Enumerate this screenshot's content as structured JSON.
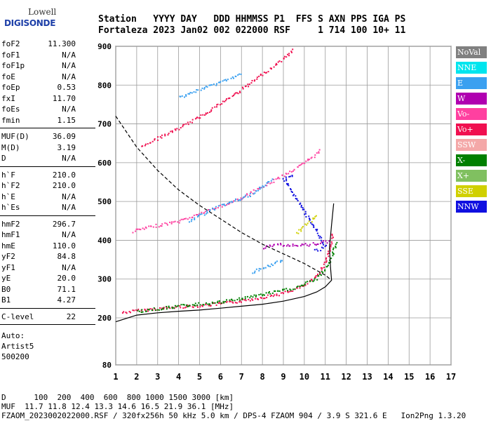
{
  "logo": {
    "line1": "Lowell",
    "line2": "DIGISONDE"
  },
  "header": {
    "line1": "Station   YYYY DAY   DDD HHMMSS P1  FFS S AXN PPS IGA PS",
    "line2": "Fortaleza 2023 Jan02 002 022000 RSF     1 714 100 10+ 11"
  },
  "params": {
    "group1": [
      {
        "label": "foF2",
        "value": "11.300"
      },
      {
        "label": "foF1",
        "value": "N/A"
      },
      {
        "label": "foF1p",
        "value": "N/A"
      },
      {
        "label": "foE",
        "value": "N/A"
      },
      {
        "label": "foEp",
        "value": "0.53"
      },
      {
        "label": "fxI",
        "value": "11.70"
      },
      {
        "label": "foEs",
        "value": "N/A"
      },
      {
        "label": "fmin",
        "value": "1.15"
      }
    ],
    "group2": [
      {
        "label": "MUF(D)",
        "value": "36.09"
      },
      {
        "label": "M(D)",
        "value": "3.19"
      },
      {
        "label": "D",
        "value": "N/A"
      }
    ],
    "group3": [
      {
        "label": "h`F",
        "value": "210.0"
      },
      {
        "label": "h`F2",
        "value": "210.0"
      },
      {
        "label": "h`E",
        "value": "N/A"
      },
      {
        "label": "h`Es",
        "value": "N/A"
      }
    ],
    "group4": [
      {
        "label": "hmF2",
        "value": "296.7"
      },
      {
        "label": "hmF1",
        "value": "N/A"
      },
      {
        "label": "hmE",
        "value": "110.0"
      },
      {
        "label": "yF2",
        "value": "84.8"
      },
      {
        "label": "yF1",
        "value": "N/A"
      },
      {
        "label": "yE",
        "value": "20.0"
      },
      {
        "label": "B0",
        "value": "71.1"
      },
      {
        "label": "B1",
        "value": "4.27"
      }
    ],
    "group5": [
      {
        "label": "C-level",
        "value": "22"
      }
    ],
    "aux": [
      "Auto:",
      "Artist5",
      "500200"
    ]
  },
  "legend": [
    {
      "label": "NoVal",
      "color": "#808080",
      "text_color": "#ffffff"
    },
    {
      "label": "NNE",
      "color": "#00e5ee",
      "text_color": "#ffffff"
    },
    {
      "label": "E",
      "color": "#3aa0f0",
      "text_color": "#ffffff"
    },
    {
      "label": "W",
      "color": "#b000b0",
      "text_color": "#ffffff"
    },
    {
      "label": "Vo-",
      "color": "#ff40a0",
      "text_color": "#ffffff"
    },
    {
      "label": "Vo+",
      "color": "#f01050",
      "text_color": "#ffffff"
    },
    {
      "label": "SSW",
      "color": "#f4a8a8",
      "text_color": "#ffffff"
    },
    {
      "label": "X-",
      "color": "#008000",
      "text_color": "#ffffff"
    },
    {
      "label": "X+",
      "color": "#80c060",
      "text_color": "#ffffff"
    },
    {
      "label": "SSE",
      "color": "#d0d000",
      "text_color": "#ffffff"
    },
    {
      "label": "NNW",
      "color": "#1010e0",
      "text_color": "#ffffff"
    }
  ],
  "footer": {
    "line1": "D      100  200  400  600  800 1000 1500 3000 [km]",
    "line2": "MUF  11.7 11.8 12.4 13.3 14.6 16.5 21.9 36.1 [MHz]",
    "line3": "FZAOM_2023002022000.RSF / 320fx256h 50 kHz 5.0 km / DPS-4 FZAOM 904 / 3.9 S 321.6 E   Ion2Png 1.3.20"
  },
  "chart_data": {
    "type": "scatter",
    "xlim": [
      1,
      17
    ],
    "ylim": [
      80,
      900
    ],
    "x_ticks": [
      1,
      2,
      3,
      4,
      5,
      6,
      7,
      8,
      9,
      10,
      11,
      12,
      13,
      14,
      15,
      16,
      17
    ],
    "y_ticks": [
      80,
      200,
      300,
      400,
      500,
      600,
      700,
      800,
      900
    ],
    "grid": true,
    "profile_solid": [
      [
        1.0,
        190
      ],
      [
        2.0,
        207
      ],
      [
        3.0,
        213
      ],
      [
        4.0,
        217
      ],
      [
        5.0,
        220
      ],
      [
        6.0,
        225
      ],
      [
        7.0,
        230
      ],
      [
        8.0,
        235
      ],
      [
        9.0,
        243
      ],
      [
        10.0,
        255
      ],
      [
        10.6,
        267
      ],
      [
        11.0,
        280
      ],
      [
        11.3,
        297
      ],
      [
        11.25,
        330
      ],
      [
        11.2,
        380
      ],
      [
        11.3,
        440
      ],
      [
        11.4,
        495
      ]
    ],
    "profile_dashed": [
      [
        1.0,
        720
      ],
      [
        2.0,
        640
      ],
      [
        3.0,
        580
      ],
      [
        4.0,
        530
      ],
      [
        5.0,
        490
      ],
      [
        6.0,
        455
      ],
      [
        7.0,
        420
      ],
      [
        8.0,
        390
      ],
      [
        9.0,
        365
      ],
      [
        10.0,
        340
      ],
      [
        10.6,
        322
      ],
      [
        11.0,
        310
      ],
      [
        11.3,
        297
      ]
    ],
    "traces": [
      {
        "color": "#f01050",
        "points": [
          [
            1.3,
            215
          ],
          [
            2.0,
            220
          ],
          [
            3.0,
            225
          ],
          [
            4.0,
            230
          ],
          [
            5.0,
            233
          ],
          [
            6.0,
            238
          ],
          [
            7.0,
            245
          ],
          [
            8.0,
            255
          ],
          [
            9.0,
            265
          ],
          [
            10.0,
            285
          ],
          [
            10.5,
            305
          ],
          [
            10.9,
            335
          ],
          [
            11.2,
            380
          ],
          [
            11.35,
            420
          ]
        ]
      },
      {
        "color": "#ff40a0",
        "points": [
          [
            1.8,
            425
          ],
          [
            3.0,
            440
          ],
          [
            4.0,
            450
          ],
          [
            5.0,
            470
          ],
          [
            6.0,
            490
          ],
          [
            7.0,
            510
          ],
          [
            8.0,
            540
          ],
          [
            9.0,
            570
          ],
          [
            10.0,
            600
          ],
          [
            10.8,
            635
          ]
        ]
      },
      {
        "color": "#f01050",
        "points": [
          [
            2.2,
            645
          ],
          [
            3.0,
            665
          ],
          [
            4.0,
            690
          ],
          [
            5.0,
            720
          ],
          [
            6.0,
            755
          ],
          [
            7.0,
            790
          ],
          [
            8.0,
            830
          ],
          [
            9.0,
            870
          ],
          [
            9.5,
            895
          ]
        ]
      },
      {
        "color": "#008000",
        "points": [
          [
            2.0,
            218
          ],
          [
            4.0,
            232
          ],
          [
            6.0,
            242
          ],
          [
            8.0,
            262
          ],
          [
            9.5,
            278
          ],
          [
            10.5,
            300
          ],
          [
            11.0,
            330
          ],
          [
            11.3,
            360
          ],
          [
            11.5,
            400
          ]
        ]
      },
      {
        "color": "#3aa0f0",
        "points": [
          [
            7.5,
            320
          ],
          [
            8.0,
            330
          ],
          [
            8.5,
            340
          ],
          [
            9.0,
            350
          ],
          [
            4.5,
            450
          ],
          [
            5.5,
            480
          ],
          [
            6.5,
            500
          ],
          [
            7.5,
            520
          ],
          [
            8.5,
            560
          ],
          [
            4.0,
            770
          ],
          [
            5.0,
            790
          ],
          [
            6.0,
            810
          ],
          [
            7.0,
            830
          ]
        ]
      },
      {
        "color": "#1010e0",
        "points": [
          [
            10.5,
            375
          ],
          [
            10.8,
            380
          ],
          [
            11.0,
            385
          ],
          [
            9.0,
            560
          ],
          [
            9.5,
            570
          ],
          [
            8.5,
            830
          ]
        ]
      },
      {
        "color": "#d0d000",
        "points": [
          [
            9.6,
            420
          ],
          [
            10.0,
            440
          ],
          [
            10.3,
            450
          ],
          [
            10.6,
            470
          ]
        ]
      },
      {
        "color": "#b000b0",
        "points": [
          [
            8.0,
            380
          ],
          [
            8.5,
            390
          ],
          [
            10.2,
            390
          ],
          [
            11.2,
            400
          ]
        ]
      }
    ]
  }
}
